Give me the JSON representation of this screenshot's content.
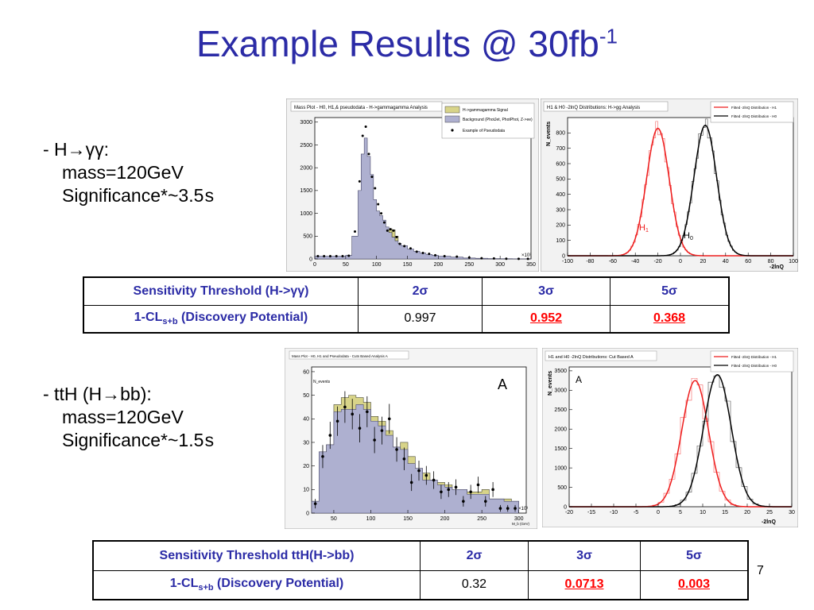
{
  "slide": {
    "title_main": "Example Results @ 30fb",
    "title_sup": "-1",
    "page_number": "7"
  },
  "section1": {
    "heading_prefix": "- H",
    "heading_arrow": "→",
    "heading_suffix": "γγ:",
    "mass": "mass=120GeV",
    "significance": "Significance*~3.5",
    "sigma_char": "s"
  },
  "section2": {
    "heading_prefix": "- ttH (H",
    "heading_arrow": "→",
    "heading_suffix": "bb):",
    "mass": "mass=120GeV",
    "significance": "Significance*~1.5",
    "sigma_char": "s"
  },
  "table1": {
    "header": "Sensitivity Threshold (H->γγ)",
    "cols": [
      "2σ",
      "3σ",
      "5σ"
    ],
    "row_label_main": "1-CL",
    "row_label_sub": "s+b",
    "row_label_rest": " (Discovery Potential)",
    "values": [
      "0.997",
      "0.952",
      "0.368"
    ]
  },
  "table2": {
    "header": "Sensitivity Threshold ttH(H->bb)",
    "cols": [
      "2σ",
      "3σ",
      "5σ"
    ],
    "row_label_main": "1-CL",
    "row_label_sub": "s+b",
    "row_label_rest": " (Discovery Potential)",
    "values": [
      "0.32",
      "0.0713",
      "0.003"
    ]
  },
  "chart_data": [
    {
      "type": "area",
      "title": "Mass Plot - H0, H1,& pseudodata - H->gammagamma Analysis",
      "xlabel": "",
      "ylabel": "",
      "x_multiplier_label": "×10³",
      "xlim": [
        0,
        350
      ],
      "ylim": [
        0,
        3100
      ],
      "xticks": [
        0,
        50,
        100,
        150,
        200,
        250,
        300,
        350
      ],
      "yticks": [
        0,
        500,
        1000,
        1500,
        2000,
        2500,
        3000
      ],
      "legend": [
        "H->gammagamma Signal",
        "Background (PhotJet, PhotPhot, Z->ee)",
        "Example of Pseudodata"
      ],
      "x": [
        0,
        10,
        20,
        30,
        40,
        50,
        60,
        70,
        75,
        80,
        85,
        90,
        95,
        100,
        105,
        110,
        115,
        120,
        125,
        130,
        135,
        140,
        150,
        160,
        170,
        180,
        190,
        200,
        220,
        240,
        260,
        280,
        300,
        320,
        340
      ],
      "background": [
        60,
        60,
        60,
        60,
        60,
        80,
        500,
        1500,
        2300,
        2650,
        2250,
        1850,
        1300,
        1050,
        950,
        850,
        700,
        580,
        480,
        400,
        340,
        290,
        220,
        170,
        130,
        100,
        80,
        60,
        40,
        20,
        15,
        8,
        5,
        3,
        2
      ],
      "signal": [
        0,
        0,
        0,
        0,
        0,
        0,
        0,
        0,
        0,
        0,
        0,
        0,
        0,
        0,
        0,
        0,
        0,
        80,
        160,
        100,
        0,
        0,
        0,
        0,
        0,
        0,
        0,
        0,
        0,
        0,
        0,
        0,
        0,
        0,
        0
      ],
      "pseudodata": [
        60,
        60,
        60,
        60,
        60,
        70,
        600,
        1700,
        2700,
        2900,
        2300,
        1800,
        1550,
        1200,
        1000,
        800,
        620,
        650,
        620,
        480,
        330,
        280,
        230,
        160,
        130,
        110,
        80,
        60,
        50,
        30,
        15,
        10,
        5,
        3,
        2
      ],
      "legend_position": "top-right"
    },
    {
      "type": "line",
      "title": "H1 & H0 -2lnQ Distributions: H->gg Analysis",
      "xlabel": "-2lnQ",
      "ylabel": "N_events",
      "xlim": [
        -100,
        100
      ],
      "ylim": [
        0,
        900
      ],
      "xticks": [
        -100,
        -80,
        -60,
        -40,
        -20,
        0,
        20,
        40,
        60,
        80,
        100
      ],
      "yticks": [
        0,
        100,
        200,
        300,
        400,
        500,
        600,
        700,
        800
      ],
      "series": [
        {
          "name": "Fitted -2lnQ Distribution - H1",
          "label": "H",
          "label_sub": "1",
          "color": "#ee1c1c",
          "mean": -20,
          "sigma": 10,
          "peak": 830
        },
        {
          "name": "Fitted -2lnQ Distribution - H0",
          "label": "H",
          "label_sub": "0",
          "color": "#000000",
          "mean": 22,
          "sigma": 10,
          "peak": 850
        }
      ],
      "legend_position": "top-right"
    },
    {
      "type": "area",
      "title": "Mass Plot - H0, H1 and Pseudodata - Cuts Based Analysis A",
      "xlabel": "M_b (GeV)",
      "ylabel": "N_events",
      "x_multiplier_label": "×10³",
      "corner_label": "A",
      "xlim": [
        20,
        310
      ],
      "ylim": [
        0,
        62
      ],
      "xticks": [
        50,
        100,
        150,
        200,
        250,
        300
      ],
      "yticks": [
        0,
        10,
        20,
        30,
        40,
        50,
        60
      ],
      "bin_edges": [
        20,
        30,
        40,
        50,
        60,
        70,
        80,
        90,
        100,
        110,
        120,
        130,
        140,
        150,
        160,
        170,
        180,
        190,
        200,
        210,
        220,
        230,
        240,
        250,
        260,
        270,
        280,
        290,
        300
      ],
      "background": [
        5,
        26,
        29,
        43,
        44,
        44,
        46,
        44,
        39,
        37,
        33,
        28,
        27,
        21,
        19,
        14,
        14,
        12,
        11,
        10,
        10,
        8,
        8,
        8,
        6,
        6,
        5,
        5
      ],
      "signal": [
        0,
        0,
        0,
        3,
        5,
        6,
        3,
        3,
        2,
        2,
        2,
        0,
        3,
        3,
        0,
        3,
        0,
        1,
        1,
        0,
        0,
        1,
        1,
        2,
        0,
        0,
        1,
        0
      ],
      "pseudodata": [
        4,
        24,
        33,
        39,
        45,
        42,
        36,
        43,
        31,
        35,
        40,
        27,
        23,
        13,
        18,
        16,
        14,
        9,
        10,
        11,
        5,
        9,
        12,
        5,
        10,
        2,
        2,
        2
      ],
      "legend_position": "none"
    },
    {
      "type": "line",
      "title": "H1 and H0 -2lnQ Distributions: Cut Based A",
      "xlabel": "-2lnQ",
      "ylabel": "N_events",
      "corner_label": "A",
      "xlim": [
        -20,
        30
      ],
      "ylim": [
        0,
        3600
      ],
      "xticks": [
        -20,
        -15,
        -10,
        -5,
        0,
        5,
        10,
        15,
        20,
        25,
        30
      ],
      "yticks": [
        0,
        500,
        1000,
        1500,
        2000,
        2500,
        3000,
        3500
      ],
      "series": [
        {
          "name": "Fitted -2lnQ Distribution - H1",
          "color": "#ee1c1c",
          "mean": 8.3,
          "sigma": 3.0,
          "peak": 3250
        },
        {
          "name": "Fitted -2lnQ Distribution - H0",
          "color": "#000000",
          "mean": 13.3,
          "sigma": 3.1,
          "peak": 3400
        }
      ],
      "legend_position": "top-right"
    }
  ]
}
